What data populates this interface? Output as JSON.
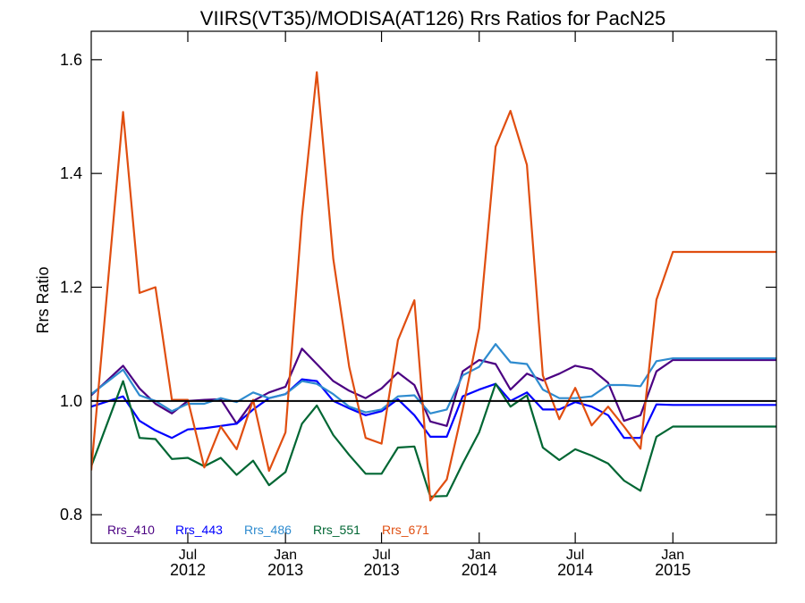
{
  "chart_data": {
    "type": "line",
    "title": "VIIRS(VT35)/MODISA(AT126)  Rrs Ratios for PacN25",
    "ylabel": "Rrs Ratio",
    "xlabel": "",
    "ylim": [
      0.75,
      1.65
    ],
    "xlim": [
      "2012-01-01",
      "2015-07-15"
    ],
    "yticks": [
      0.8,
      1.0,
      1.2,
      1.4,
      1.6
    ],
    "ytick_labels": [
      "0.8",
      "1.0",
      "1.2",
      "1.4",
      "1.6"
    ],
    "xticks": [
      {
        "date": "2012-07-01",
        "top": "Jul",
        "bottom": "2012"
      },
      {
        "date": "2013-01-01",
        "top": "Jan",
        "bottom": "2013"
      },
      {
        "date": "2013-07-01",
        "top": "Jul",
        "bottom": "2013"
      },
      {
        "date": "2014-01-01",
        "top": "Jan",
        "bottom": "2014"
      },
      {
        "date": "2014-07-01",
        "top": "Jul",
        "bottom": "2014"
      },
      {
        "date": "2015-01-01",
        "top": "Jan",
        "bottom": "2015"
      }
    ],
    "reference_line": 1.0,
    "grid": false,
    "legend_position": "bottom-left",
    "x": [
      "2012-01-01",
      "2012-03-01",
      "2012-04-01",
      "2012-05-01",
      "2012-06-01",
      "2012-07-01",
      "2012-08-01",
      "2012-09-01",
      "2012-10-01",
      "2012-11-01",
      "2012-12-01",
      "2013-01-01",
      "2013-02-01",
      "2013-03-01",
      "2013-04-01",
      "2013-05-01",
      "2013-06-01",
      "2013-07-01",
      "2013-08-01",
      "2013-09-01",
      "2013-10-01",
      "2013-11-01",
      "2013-12-01",
      "2014-01-01",
      "2014-02-01",
      "2014-03-01",
      "2014-04-01",
      "2014-05-01",
      "2014-06-01",
      "2014-07-01",
      "2014-08-01",
      "2014-09-01",
      "2014-10-01",
      "2014-11-01",
      "2014-12-01",
      "2015-01-01",
      "2015-02-01",
      "2015-03-01",
      "2015-04-01",
      "2015-07-15"
    ],
    "series": [
      {
        "name": "Rrs_410",
        "color": "#4b0082",
        "values": [
          1.01,
          1.062,
          1.022,
          0.995,
          0.978,
          1.0,
          1.002,
          1.003,
          0.96,
          1.0,
          1.015,
          1.025,
          1.092,
          1.065,
          1.035,
          1.018,
          1.005,
          1.022,
          1.05,
          1.028,
          0.964,
          0.956,
          1.052,
          1.072,
          1.065,
          1.02,
          1.048,
          1.036,
          1.048,
          1.062,
          1.056,
          1.032,
          0.965,
          0.975,
          1.052,
          1.072,
          1.072,
          1.072,
          1.072,
          1.072
        ]
      },
      {
        "name": "Rrs_443",
        "color": "#0000ff",
        "values": [
          0.99,
          1.008,
          0.965,
          0.948,
          0.935,
          0.95,
          0.952,
          0.956,
          0.96,
          0.985,
          1.005,
          1.012,
          1.038,
          1.035,
          1.0,
          0.987,
          0.975,
          0.982,
          1.003,
          0.975,
          0.937,
          0.937,
          1.008,
          1.02,
          1.03,
          1.0,
          1.015,
          0.985,
          0.985,
          0.998,
          0.99,
          0.975,
          0.935,
          0.935,
          0.994,
          0.993,
          0.993,
          0.993,
          0.993,
          0.993
        ]
      },
      {
        "name": "Rrs_486",
        "color": "#2e8bcf",
        "values": [
          1.012,
          1.055,
          1.01,
          1.0,
          0.982,
          0.995,
          0.995,
          1.005,
          0.998,
          1.015,
          1.005,
          1.012,
          1.035,
          1.03,
          1.012,
          0.99,
          0.98,
          0.985,
          1.008,
          1.01,
          0.978,
          0.985,
          1.045,
          1.06,
          1.1,
          1.068,
          1.065,
          1.02,
          1.005,
          1.005,
          1.008,
          1.028,
          1.028,
          1.026,
          1.07,
          1.075,
          1.075,
          1.075,
          1.075,
          1.075
        ]
      },
      {
        "name": "Rrs_551",
        "color": "#006633",
        "values": [
          0.885,
          1.035,
          0.935,
          0.933,
          0.898,
          0.9,
          0.885,
          0.9,
          0.87,
          0.895,
          0.852,
          0.875,
          0.96,
          0.992,
          0.94,
          0.905,
          0.872,
          0.872,
          0.918,
          0.92,
          0.832,
          0.833,
          0.89,
          0.945,
          1.03,
          0.99,
          1.01,
          0.918,
          0.896,
          0.915,
          0.904,
          0.89,
          0.86,
          0.842,
          0.937,
          0.955,
          0.955,
          0.955,
          0.955,
          0.955
        ]
      },
      {
        "name": "Rrs_671",
        "color": "#e04e10",
        "values": [
          0.878,
          1.508,
          1.19,
          1.2,
          1.002,
          1.002,
          0.883,
          0.955,
          0.915,
          1.002,
          0.877,
          0.945,
          1.325,
          1.578,
          1.25,
          1.06,
          0.935,
          0.925,
          1.107,
          1.177,
          0.825,
          0.862,
          0.985,
          1.128,
          1.447,
          1.51,
          1.415,
          1.045,
          0.968,
          1.023,
          0.957,
          0.99,
          0.955,
          0.916,
          1.178,
          1.262,
          1.262,
          1.262,
          1.262,
          1.262
        ]
      }
    ]
  }
}
